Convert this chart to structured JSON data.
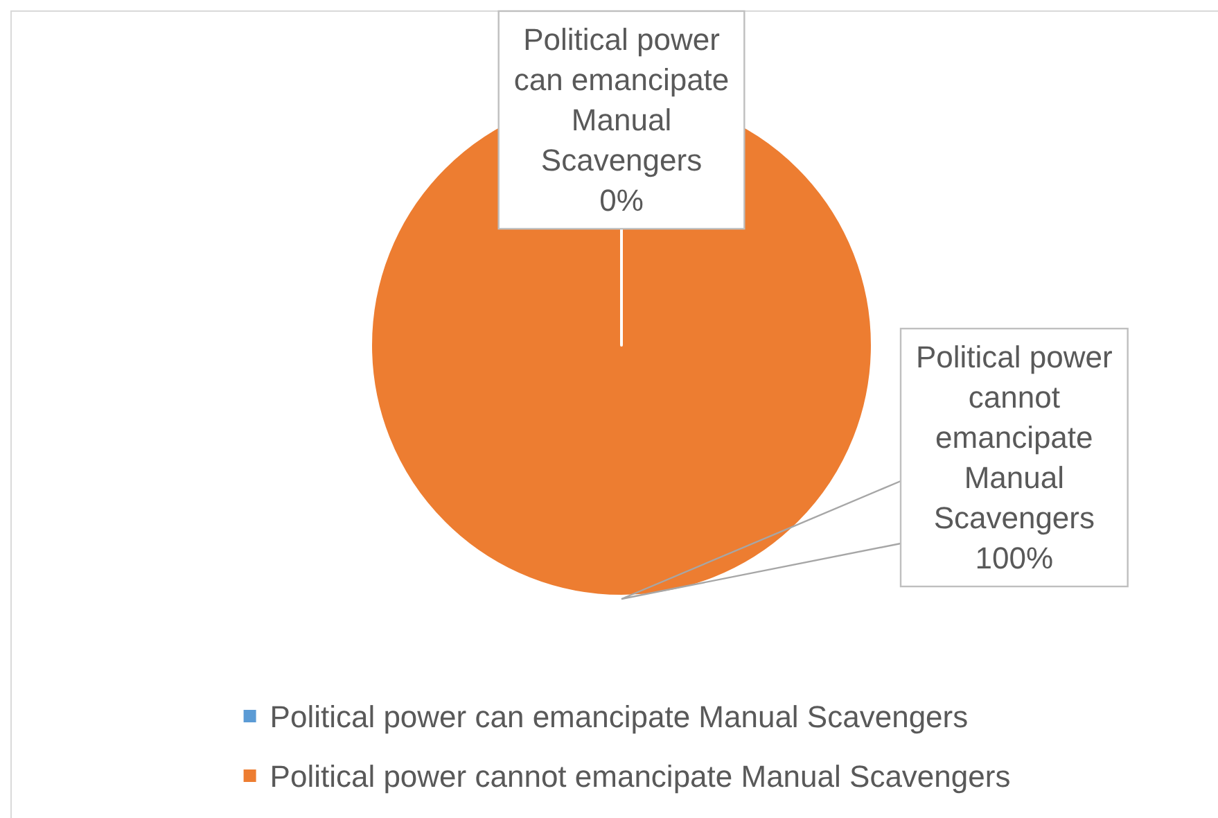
{
  "chart_data": {
    "type": "pie",
    "categories": [
      "Political power can emancipate Manual Scavengers",
      "Political power cannot emancipate Manual Scavengers"
    ],
    "values": [
      0,
      100
    ],
    "colors": [
      "#5b9bd5",
      "#ed7d31"
    ],
    "value_labels": [
      "0%",
      "100%"
    ],
    "legend": "bottom"
  }
}
